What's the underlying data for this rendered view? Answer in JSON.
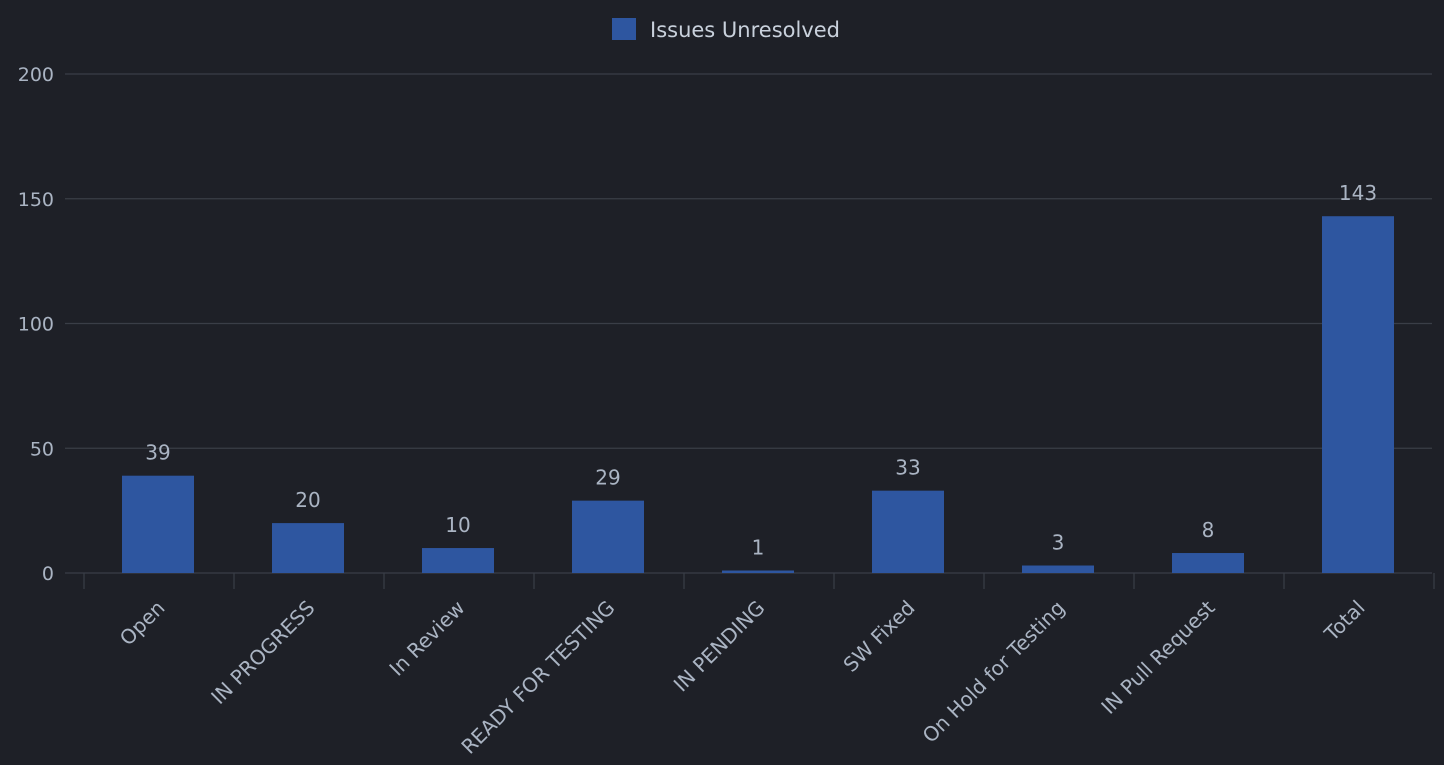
{
  "chart_data": {
    "type": "bar",
    "categories": [
      "Open",
      "IN PROGRESS",
      "In Review",
      "READY FOR TESTING",
      "IN PENDING",
      "SW Fixed",
      "On Hold for Testing",
      "IN Pull Request",
      "Total"
    ],
    "series": [
      {
        "name": "Issues Unresolved",
        "values": [
          39,
          20,
          10,
          29,
          1,
          33,
          3,
          8,
          143
        ],
        "color": "#2e56a0"
      }
    ],
    "ylim": [
      0,
      200
    ],
    "yticks": [
      0,
      50,
      100,
      150,
      200
    ],
    "grid": true,
    "legend_position": "top-center",
    "data_labels": true,
    "colors": {
      "background": "#1e2027",
      "grid": "#3a3e47",
      "text": "#aab4c3",
      "legend_text": "#c9d1dc"
    }
  }
}
